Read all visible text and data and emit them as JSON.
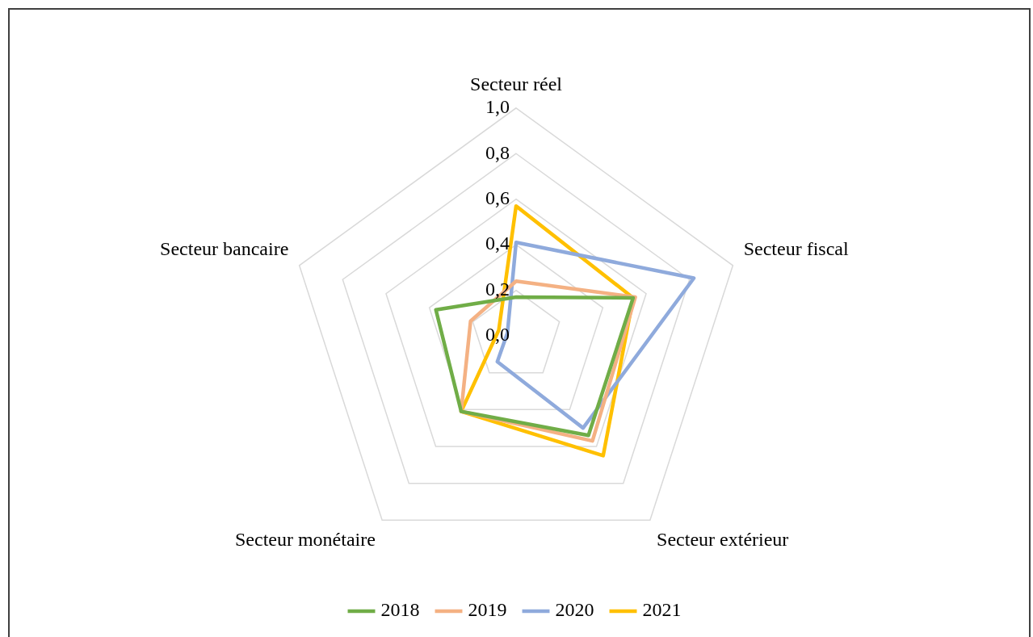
{
  "chart_data": {
    "type": "radar",
    "categories": [
      "Secteur réel",
      "Secteur fiscal",
      "Secteur extérieur",
      "Secteur monétaire",
      "Secteur bancaire"
    ],
    "series": [
      {
        "name": "2018",
        "color": "#70ad47",
        "values": [
          0.17,
          0.54,
          0.54,
          0.41,
          0.37
        ]
      },
      {
        "name": "2019",
        "color": "#f4b183",
        "values": [
          0.24,
          0.55,
          0.57,
          0.41,
          0.21
        ]
      },
      {
        "name": "2020",
        "color": "#8faadc",
        "values": [
          0.41,
          0.82,
          0.5,
          0.14,
          0.04
        ]
      },
      {
        "name": "2021",
        "color": "#ffc000",
        "values": [
          0.57,
          0.54,
          0.65,
          0.41,
          0.08
        ]
      }
    ],
    "ylim": [
      0,
      1
    ],
    "yticks": [
      {
        "value": 0,
        "label": "0,0"
      },
      {
        "value": 0.2,
        "label": "0,2"
      },
      {
        "value": 0.4,
        "label": "0,4"
      },
      {
        "value": 0.6,
        "label": "0,6"
      },
      {
        "value": 0.8,
        "label": "0,8"
      },
      {
        "value": 1,
        "label": "1,0"
      }
    ],
    "grid": true,
    "legend": "bottom",
    "marker": "none",
    "line_style": "solid"
  }
}
